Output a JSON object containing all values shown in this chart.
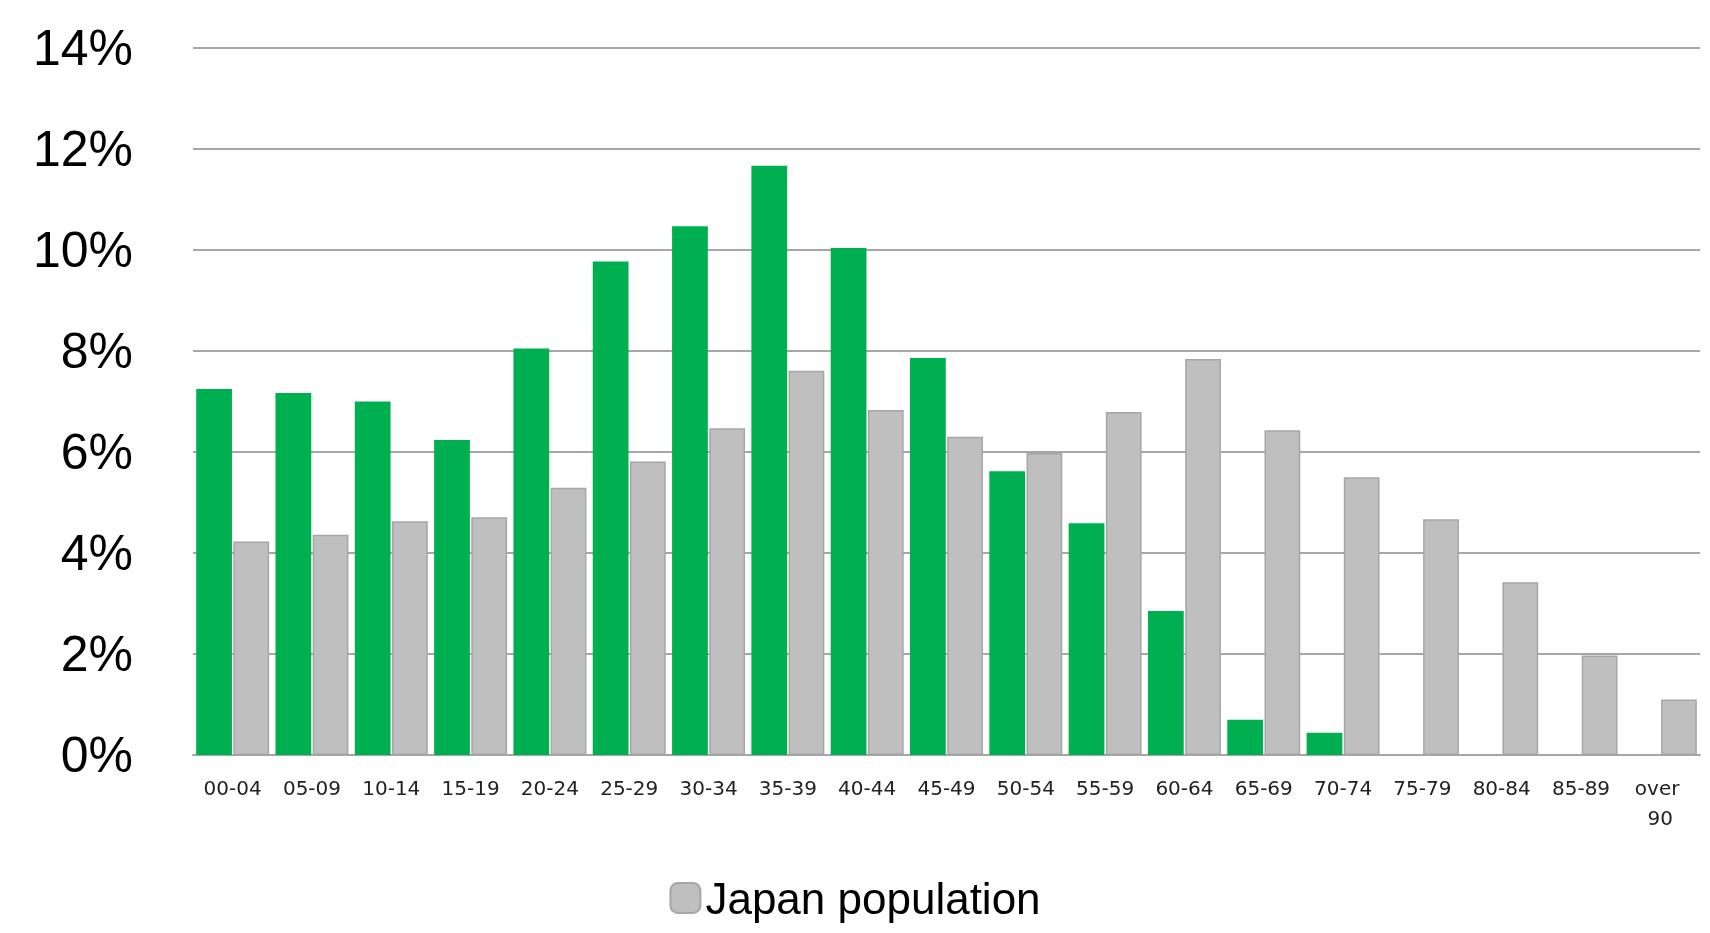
{
  "chart_data": {
    "type": "bar",
    "categories": [
      "00-04",
      "05-09",
      "10-14",
      "15-19",
      "20-24",
      "25-29",
      "30-34",
      "35-39",
      "40-44",
      "45-49",
      "50-54",
      "55-59",
      "60-64",
      "65-69",
      "70-74",
      "75-79",
      "80-84",
      "85-89",
      "over 90"
    ],
    "series": [
      {
        "color": "#00b050",
        "values": [
          7.25,
          7.17,
          7.0,
          6.24,
          8.05,
          9.77,
          10.47,
          11.67,
          10.04,
          7.86,
          5.62,
          4.59,
          2.85,
          0.7,
          0.44,
          null,
          null,
          null,
          null
        ]
      },
      {
        "name": "Japan population",
        "color": "#bfbfbf",
        "values": [
          4.23,
          4.36,
          4.63,
          4.71,
          5.29,
          5.81,
          6.47,
          7.61,
          6.83,
          6.3,
          5.98,
          6.79,
          7.84,
          6.43,
          5.5,
          4.67,
          3.42,
          1.97,
          1.1
        ]
      }
    ],
    "ylim": [
      0,
      14
    ],
    "yticks": [
      {
        "value": 0,
        "label": "0%"
      },
      {
        "value": 2,
        "label": "2%"
      },
      {
        "value": 4,
        "label": "4%"
      },
      {
        "value": 6,
        "label": "6%"
      },
      {
        "value": 8,
        "label": "8%"
      },
      {
        "value": 10,
        "label": "10%"
      },
      {
        "value": 12,
        "label": "12%"
      },
      {
        "value": 14,
        "label": "14%"
      }
    ],
    "grid": "y",
    "legend": "bottom"
  }
}
